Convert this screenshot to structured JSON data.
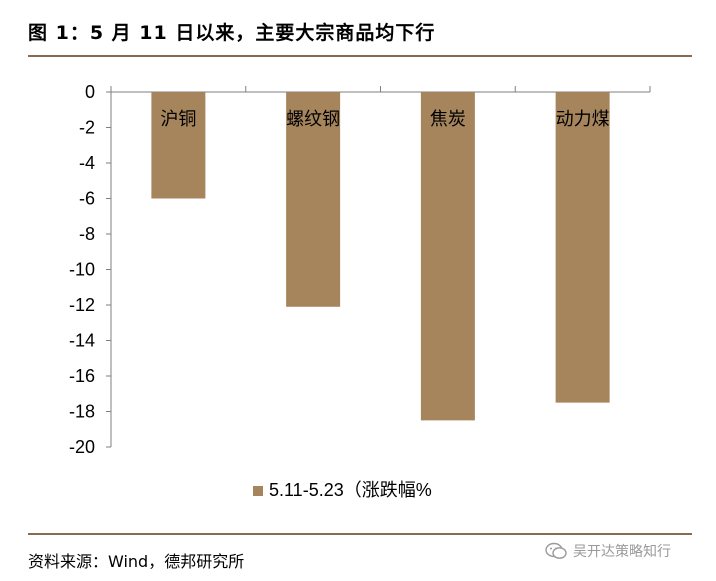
{
  "figure": {
    "title": "图 1：5 月 11 日以来，主要大宗商品均下行",
    "source": "资料来源：Wind，德邦研究所",
    "watermark": "吴开达策略知行"
  },
  "colors": {
    "bar": "#a6845c",
    "rule": "#8b6a4b",
    "axis": "#7f7f7f"
  },
  "chart_data": {
    "type": "bar",
    "categories": [
      "沪铜",
      "螺纹钢",
      "焦炭",
      "动力煤"
    ],
    "series": [
      {
        "name": "5.11-5.23（涨跌幅%",
        "values": [
          -6.0,
          -12.1,
          -18.5,
          -17.5
        ]
      }
    ],
    "ylim": [
      -20,
      0
    ],
    "yticks": [
      0,
      -2,
      -4,
      -6,
      -8,
      -10,
      -12,
      -14,
      -16,
      -18,
      -20
    ],
    "legend_position": "bottom",
    "grid": false
  }
}
